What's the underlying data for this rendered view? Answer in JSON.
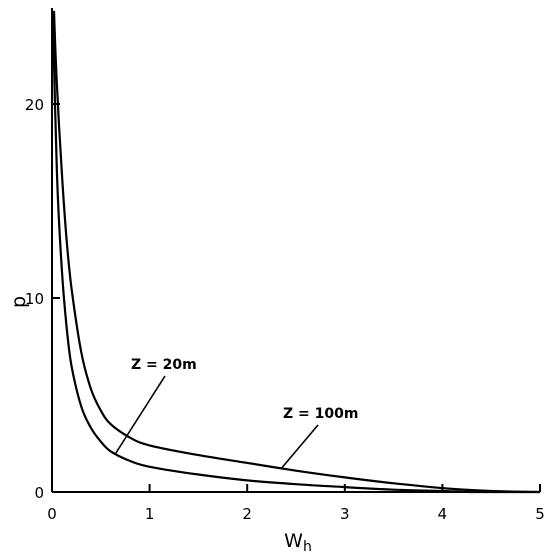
{
  "chart_data": {
    "type": "line",
    "xlabel": "W",
    "xlabel_sub": "h",
    "ylabel": "p",
    "xlim": [
      0,
      5
    ],
    "ylim": [
      0,
      25
    ],
    "grid": false,
    "x_ticks": [
      0,
      1,
      2,
      3,
      4,
      5
    ],
    "y_ticks": [
      0,
      10,
      20
    ],
    "series": [
      {
        "name": "Z = 20m",
        "x": [
          0.01,
          0.05,
          0.1,
          0.15,
          0.2,
          0.3,
          0.4,
          0.5,
          0.6,
          0.8,
          1.0,
          1.5,
          2.0,
          2.5,
          3.0,
          3.5,
          4.0,
          4.3,
          5.0
        ],
        "y": [
          24.5,
          16.5,
          11.5,
          8.5,
          6.5,
          4.4,
          3.3,
          2.6,
          2.1,
          1.6,
          1.3,
          0.9,
          0.6,
          0.4,
          0.25,
          0.12,
          0.05,
          0.0,
          0.0
        ]
      },
      {
        "name": "Z = 100m",
        "x": [
          0.02,
          0.05,
          0.1,
          0.15,
          0.2,
          0.3,
          0.4,
          0.5,
          0.6,
          0.8,
          1.0,
          1.5,
          2.0,
          2.5,
          3.0,
          3.5,
          4.0,
          4.5,
          5.0
        ],
        "y": [
          24.8,
          21.0,
          16.5,
          13.0,
          10.5,
          7.2,
          5.3,
          4.2,
          3.5,
          2.8,
          2.4,
          1.9,
          1.5,
          1.1,
          0.75,
          0.45,
          0.2,
          0.05,
          0.0
        ]
      }
    ],
    "annotations": [
      {
        "text": "Z = 20m",
        "series": 0,
        "point_x": 0.65
      },
      {
        "text": "Z = 100m",
        "series": 1,
        "point_x": 2.35
      }
    ]
  }
}
